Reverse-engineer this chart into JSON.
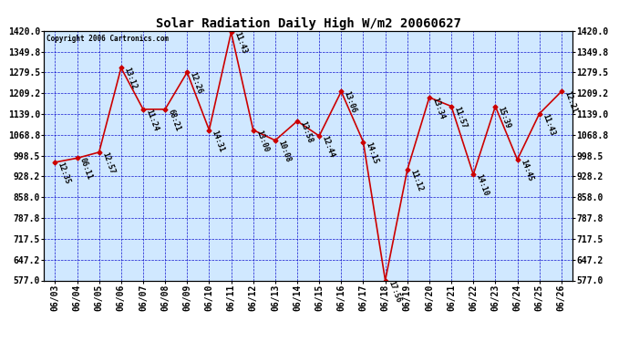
{
  "title": "Solar Radiation Daily High W/m2 20060627",
  "copyright": "Copyright 2006 Cartronics.com",
  "dates": [
    "06/03",
    "06/04",
    "06/05",
    "06/06",
    "06/07",
    "06/08",
    "06/09",
    "06/10",
    "06/11",
    "06/12",
    "06/13",
    "06/14",
    "06/15",
    "06/16",
    "06/17",
    "06/18",
    "06/19",
    "06/20",
    "06/21",
    "06/22",
    "06/23",
    "06/24",
    "06/25",
    "06/26"
  ],
  "values": [
    976,
    990,
    1010,
    1295,
    1155,
    1155,
    1280,
    1085,
    1415,
    1085,
    1050,
    1115,
    1065,
    1215,
    1045,
    577,
    950,
    1195,
    1165,
    935,
    1165,
    985,
    1140,
    1215
  ],
  "annotations": [
    "12:35",
    "06:11",
    "12:57",
    "13:12",
    "11:24",
    "68:21",
    "12:26",
    "14:31",
    "11:43",
    "13:00",
    "10:08",
    "13:58",
    "12:44",
    "13:06",
    "14:15",
    "17:56",
    "11:12",
    "13:34",
    "11:57",
    "14:10",
    "15:39",
    "14:45",
    "11:43",
    "12:21"
  ],
  "ylim": [
    577.0,
    1420.0
  ],
  "yticks": [
    577.0,
    647.2,
    717.5,
    787.8,
    858.0,
    928.2,
    998.5,
    1068.8,
    1139.0,
    1209.2,
    1279.5,
    1349.8,
    1420.0
  ],
  "line_color": "#cc0000",
  "marker_color": "#cc0000",
  "grid_color": "#0000cc",
  "bg_color": "#d0e8ff",
  "fig_color": "#ffffff",
  "title_fontsize": 10,
  "annotation_fontsize": 6.0,
  "tick_fontsize": 7.0
}
